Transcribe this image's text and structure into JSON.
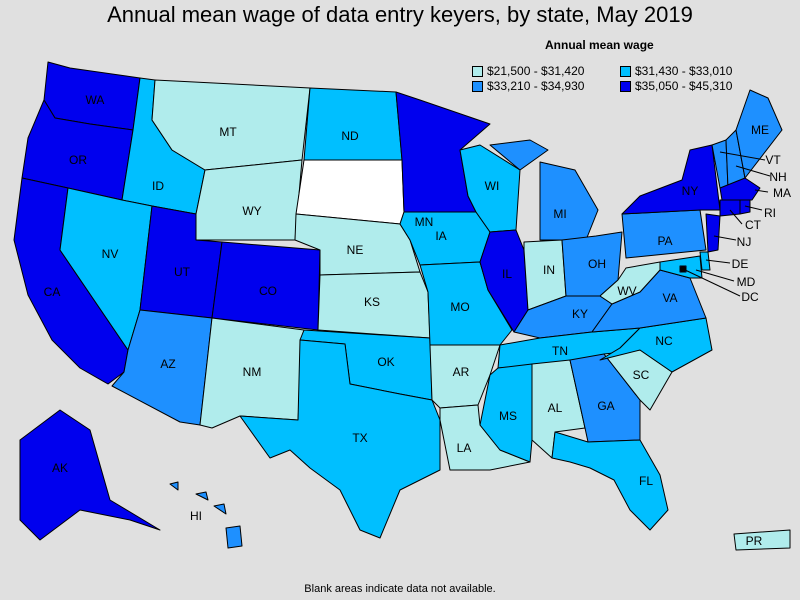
{
  "title": "Annual mean wage of data entry keyers, by state, May 2019",
  "legend": {
    "title": "Annual mean wage",
    "bins": [
      {
        "label": "$21,500 - $31,420",
        "color": "#b0ecec"
      },
      {
        "label": "$31,430 - $33,010",
        "color": "#00bfff"
      },
      {
        "label": "$33,210 - $34,930",
        "color": "#1e90ff"
      },
      {
        "label": "$35,050 - $45,310",
        "color": "#0000ee"
      }
    ]
  },
  "no_data_color": "#ffffff",
  "note": "Blank areas indicate data not available.",
  "states": {
    "WA": {
      "label": "WA",
      "bin": 3
    },
    "OR": {
      "label": "OR",
      "bin": 3
    },
    "CA": {
      "label": "CA",
      "bin": 3
    },
    "ID": {
      "label": "ID",
      "bin": 1
    },
    "NV": {
      "label": "NV",
      "bin": 1
    },
    "MT": {
      "label": "MT",
      "bin": 0
    },
    "WY": {
      "label": "WY",
      "bin": 0
    },
    "UT": {
      "label": "UT",
      "bin": 3
    },
    "CO": {
      "label": "CO",
      "bin": 3
    },
    "AZ": {
      "label": "AZ",
      "bin": 2
    },
    "NM": {
      "label": "NM",
      "bin": 0
    },
    "ND": {
      "label": "ND",
      "bin": 1
    },
    "SD": {
      "label": "",
      "bin": null
    },
    "NE": {
      "label": "NE",
      "bin": 0
    },
    "KS": {
      "label": "KS",
      "bin": 0
    },
    "OK": {
      "label": "OK",
      "bin": 1
    },
    "TX": {
      "label": "TX",
      "bin": 1
    },
    "MN": {
      "label": "MN",
      "bin": 3
    },
    "IA": {
      "label": "IA",
      "bin": 1
    },
    "MO": {
      "label": "MO",
      "bin": 1
    },
    "AR": {
      "label": "AR",
      "bin": 0
    },
    "LA": {
      "label": "LA",
      "bin": 0
    },
    "WI": {
      "label": "WI",
      "bin": 1
    },
    "IL": {
      "label": "IL",
      "bin": 3
    },
    "MI": {
      "label": "MI",
      "bin": 2
    },
    "IN": {
      "label": "IN",
      "bin": 0
    },
    "OH": {
      "label": "OH",
      "bin": 2
    },
    "KY": {
      "label": "KY",
      "bin": 2
    },
    "TN": {
      "label": "TN",
      "bin": 1
    },
    "MS": {
      "label": "MS",
      "bin": 1
    },
    "AL": {
      "label": "AL",
      "bin": 0
    },
    "GA": {
      "label": "GA",
      "bin": 2
    },
    "FL": {
      "label": "FL",
      "bin": 1
    },
    "SC": {
      "label": "SC",
      "bin": 0
    },
    "NC": {
      "label": "NC",
      "bin": 1
    },
    "VA": {
      "label": "VA",
      "bin": 2
    },
    "WV": {
      "label": "WV",
      "bin": 0
    },
    "PA": {
      "label": "PA",
      "bin": 2
    },
    "NY": {
      "label": "NY",
      "bin": 3
    },
    "ME": {
      "label": "ME",
      "bin": 2
    },
    "VT": {
      "label": "VT",
      "bin": 2
    },
    "NH": {
      "label": "NH",
      "bin": 2
    },
    "MA": {
      "label": "MA",
      "bin": 3
    },
    "RI": {
      "label": "RI",
      "bin": 3
    },
    "CT": {
      "label": "CT",
      "bin": 3
    },
    "NJ": {
      "label": "NJ",
      "bin": 3
    },
    "DE": {
      "label": "DE",
      "bin": 1
    },
    "MD": {
      "label": "MD",
      "bin": 1
    },
    "DC": {
      "label": "DC",
      "bin": 3
    },
    "AK": {
      "label": "AK",
      "bin": 3
    },
    "HI": {
      "label": "HI",
      "bin": 2
    },
    "PR": {
      "label": "PR",
      "bin": 0
    }
  }
}
